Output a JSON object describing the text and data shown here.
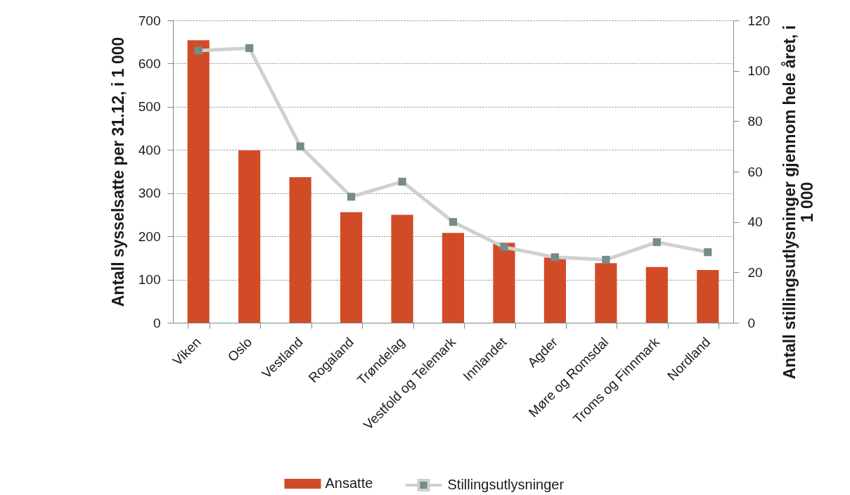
{
  "chart_data": {
    "type": "bar",
    "categories": [
      "Viken",
      "Oslo",
      "Vestland",
      "Rogaland",
      "Trøndelag",
      "Vestfold og Telemark",
      "Innlandet",
      "Agder",
      "Møre og Romsdal",
      "Troms og Finnmark",
      "Nordland"
    ],
    "series": [
      {
        "name": "Ansatte",
        "color": "#d24b27",
        "values": [
          654,
          399,
          337,
          256,
          250,
          208,
          185,
          151,
          138,
          129,
          122
        ]
      },
      {
        "name": "Stillingsutlysninger",
        "type": "line",
        "axis": "y2",
        "marker": "square",
        "color": "#d0d0d0",
        "colors": [
          "#778a8c",
          "#778a8c",
          "#778a8c",
          "#778a8c",
          "#778a8c",
          "#778a8c",
          "#778a8c",
          "#778a8c",
          "#778a8c",
          "#778a8c",
          "#778a8c"
        ],
        "values": [
          108,
          109,
          70,
          50,
          56,
          40,
          30,
          26,
          25,
          32,
          28
        ]
      }
    ],
    "ylabel": "Antall sysselsatte per 31.12, i 1 000",
    "y2label": "Antall stillingsutlysninger gjennom hele året, i 1 000",
    "ylim": [
      0,
      700
    ],
    "yticks": [
      0,
      100,
      200,
      300,
      400,
      500,
      600,
      700
    ],
    "y2lim": [
      0,
      120
    ],
    "y2ticks": [
      0,
      20,
      40,
      60,
      80,
      100,
      120
    ],
    "grid": "y",
    "legend": "bottom"
  }
}
